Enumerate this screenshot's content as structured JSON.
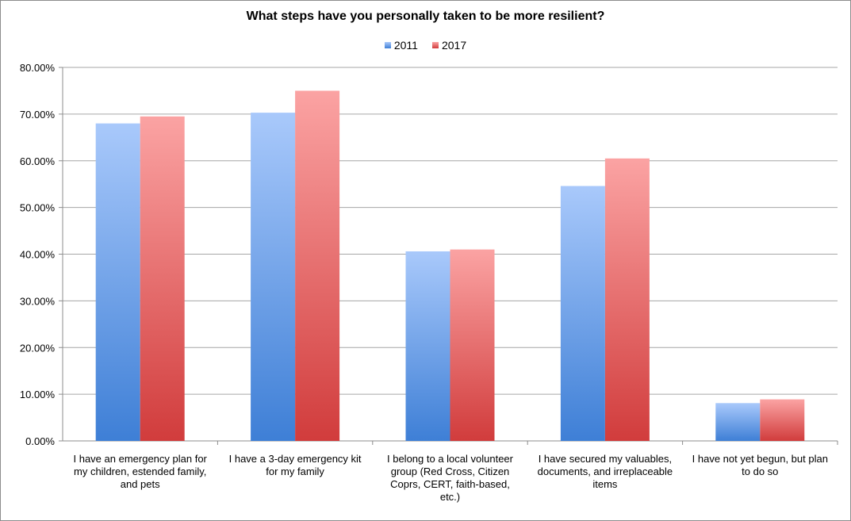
{
  "chart_data": {
    "type": "bar",
    "title": "What steps have you personally taken to be more resilient?",
    "xlabel": "",
    "ylabel": "",
    "ylim": [
      0,
      80
    ],
    "y_ticks": [
      "0.00%",
      "10.00%",
      "20.00%",
      "30.00%",
      "40.00%",
      "50.00%",
      "60.00%",
      "70.00%",
      "80.00%"
    ],
    "grid": true,
    "legend_position": "top-center",
    "categories": [
      [
        "I have an emergency plan for",
        "my children, estended family,",
        "and pets"
      ],
      [
        "I have a 3-day emergency kit",
        "for my family"
      ],
      [
        "I belong to a local volunteer",
        "group (Red Cross, Citizen",
        "Coprs, CERT, faith-based,",
        "etc.)"
      ],
      [
        "I have secured my valuables,",
        "documents, and irreplaceable",
        "items"
      ],
      [
        "I have not yet begun, but plan",
        "to do so"
      ]
    ],
    "series": [
      {
        "name": "2011",
        "values": [
          68.0,
          70.3,
          40.6,
          54.6,
          8.1
        ],
        "color_top": "#a9c9fb",
        "color_bottom": "#3e7fd6"
      },
      {
        "name": "2017",
        "values": [
          69.5,
          75.0,
          41.0,
          60.5,
          8.9
        ],
        "color_top": "#fba3a3",
        "color_bottom": "#d13c3c"
      }
    ]
  }
}
